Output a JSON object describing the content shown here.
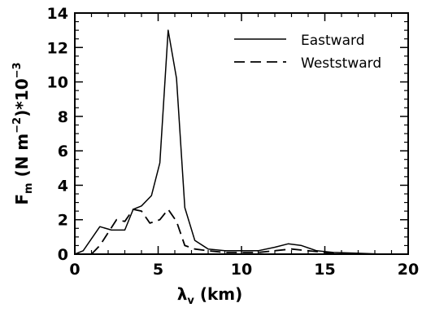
{
  "chart_data": {
    "type": "line",
    "xlabel": "λv (km)",
    "ylabel": "Fm (N m⁻²)*10⁻³",
    "xlim": [
      0,
      20
    ],
    "ylim": [
      0,
      14
    ],
    "x_ticks": [
      "0",
      "5",
      "10",
      "15",
      "20"
    ],
    "y_ticks": [
      "0",
      "2",
      "4",
      "6",
      "8",
      "10",
      "12",
      "14"
    ],
    "grid": false,
    "legend_position": "top-right",
    "series": [
      {
        "name": "Eastward",
        "style": "solid",
        "x": [
          0,
          0.5,
          1.5,
          2.2,
          3.0,
          3.5,
          4.0,
          4.6,
          5.1,
          5.6,
          6.1,
          6.6,
          7.2,
          8.0,
          9.0,
          10.0,
          11.0,
          12.0,
          12.8,
          13.6,
          14.5,
          15.5,
          17.0,
          18.5
        ],
        "y": [
          0,
          0.2,
          1.6,
          1.4,
          1.4,
          2.6,
          2.8,
          3.4,
          5.3,
          13.0,
          10.2,
          2.7,
          0.8,
          0.3,
          0.2,
          0.2,
          0.2,
          0.4,
          0.6,
          0.5,
          0.2,
          0.1,
          0.05,
          0.0
        ]
      },
      {
        "name": "Weststward",
        "style": "dashed",
        "x": [
          1.0,
          1.5,
          2.5,
          3.0,
          3.5,
          4.0,
          4.5,
          5.1,
          5.6,
          6.1,
          6.6,
          7.2,
          8.0,
          9.0,
          10.0,
          11.0,
          12.0,
          13.0,
          14.0,
          15.0,
          16.0
        ],
        "y": [
          0,
          0.5,
          2.0,
          1.9,
          2.6,
          2.5,
          1.8,
          2.0,
          2.6,
          1.9,
          0.5,
          0.3,
          0.2,
          0.1,
          0.1,
          0.1,
          0.2,
          0.3,
          0.2,
          0.1,
          0.0
        ]
      }
    ]
  },
  "colors": {
    "line": "#000000",
    "background": "#ffffff"
  }
}
